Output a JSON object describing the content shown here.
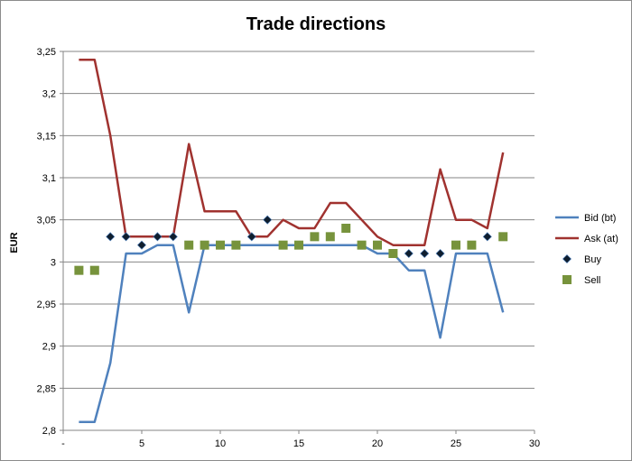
{
  "chart_data": {
    "type": "line",
    "title": "Trade directions",
    "xlabel": "",
    "ylabel": "EUR",
    "xlim": [
      0,
      30
    ],
    "ylim": [
      2.8,
      3.25
    ],
    "x_ticks": [
      {
        "value": 0,
        "label": "-"
      },
      {
        "value": 5,
        "label": "5"
      },
      {
        "value": 10,
        "label": "10"
      },
      {
        "value": 15,
        "label": "15"
      },
      {
        "value": 20,
        "label": "20"
      },
      {
        "value": 25,
        "label": "25"
      },
      {
        "value": 30,
        "label": "30"
      }
    ],
    "y_ticks": [
      {
        "value": 2.8,
        "label": "2,8"
      },
      {
        "value": 2.85,
        "label": "2,85"
      },
      {
        "value": 2.9,
        "label": "2,9"
      },
      {
        "value": 2.95,
        "label": "2,95"
      },
      {
        "value": 3.0,
        "label": "3"
      },
      {
        "value": 3.05,
        "label": "3,05"
      },
      {
        "value": 3.1,
        "label": "3,1"
      },
      {
        "value": 3.15,
        "label": "3,15"
      },
      {
        "value": 3.2,
        "label": "3,2"
      },
      {
        "value": 3.25,
        "label": "3,25"
      }
    ],
    "grid": "horizontal",
    "legend_position": "right",
    "series": [
      {
        "name": "Bid (bt)",
        "kind": "line",
        "color": "#4f81bd",
        "x": [
          1,
          2,
          3,
          4,
          5,
          6,
          7,
          8,
          9,
          10,
          11,
          12,
          13,
          14,
          15,
          16,
          17,
          18,
          19,
          20,
          21,
          22,
          23,
          24,
          25,
          26,
          27,
          28
        ],
        "y": [
          2.81,
          2.81,
          2.88,
          3.01,
          3.01,
          3.02,
          3.02,
          2.94,
          3.02,
          3.02,
          3.02,
          3.02,
          3.02,
          3.02,
          3.02,
          3.02,
          3.02,
          3.02,
          3.02,
          3.01,
          3.01,
          2.99,
          2.99,
          2.91,
          3.01,
          3.01,
          3.01,
          2.94
        ]
      },
      {
        "name": "Ask (at)",
        "kind": "line",
        "color": "#a0322f",
        "x": [
          1,
          2,
          3,
          4,
          5,
          6,
          7,
          8,
          9,
          10,
          11,
          12,
          13,
          14,
          15,
          16,
          17,
          18,
          19,
          20,
          21,
          22,
          23,
          24,
          25,
          26,
          27,
          28
        ],
        "y": [
          3.24,
          3.24,
          3.15,
          3.03,
          3.03,
          3.03,
          3.03,
          3.14,
          3.06,
          3.06,
          3.06,
          3.03,
          3.03,
          3.05,
          3.04,
          3.04,
          3.07,
          3.07,
          3.05,
          3.03,
          3.02,
          3.02,
          3.02,
          3.11,
          3.05,
          3.05,
          3.04,
          3.13
        ]
      },
      {
        "name": "Buy",
        "kind": "scatter",
        "marker": "diamond",
        "color": "#0f1e2e",
        "x": [
          3,
          4,
          5,
          6,
          7,
          12,
          13,
          22,
          23,
          24,
          27
        ],
        "y": [
          3.03,
          3.03,
          3.02,
          3.03,
          3.03,
          3.03,
          3.05,
          3.01,
          3.01,
          3.01,
          3.03
        ]
      },
      {
        "name": "Sell",
        "kind": "scatter",
        "marker": "square",
        "color": "#77933c",
        "x": [
          1,
          2,
          8,
          9,
          10,
          11,
          14,
          15,
          16,
          17,
          18,
          19,
          20,
          21,
          25,
          26,
          28
        ],
        "y": [
          2.99,
          2.99,
          3.02,
          3.02,
          3.02,
          3.02,
          3.02,
          3.02,
          3.03,
          3.03,
          3.04,
          3.02,
          3.02,
          3.01,
          3.02,
          3.02,
          3.03
        ]
      }
    ]
  }
}
